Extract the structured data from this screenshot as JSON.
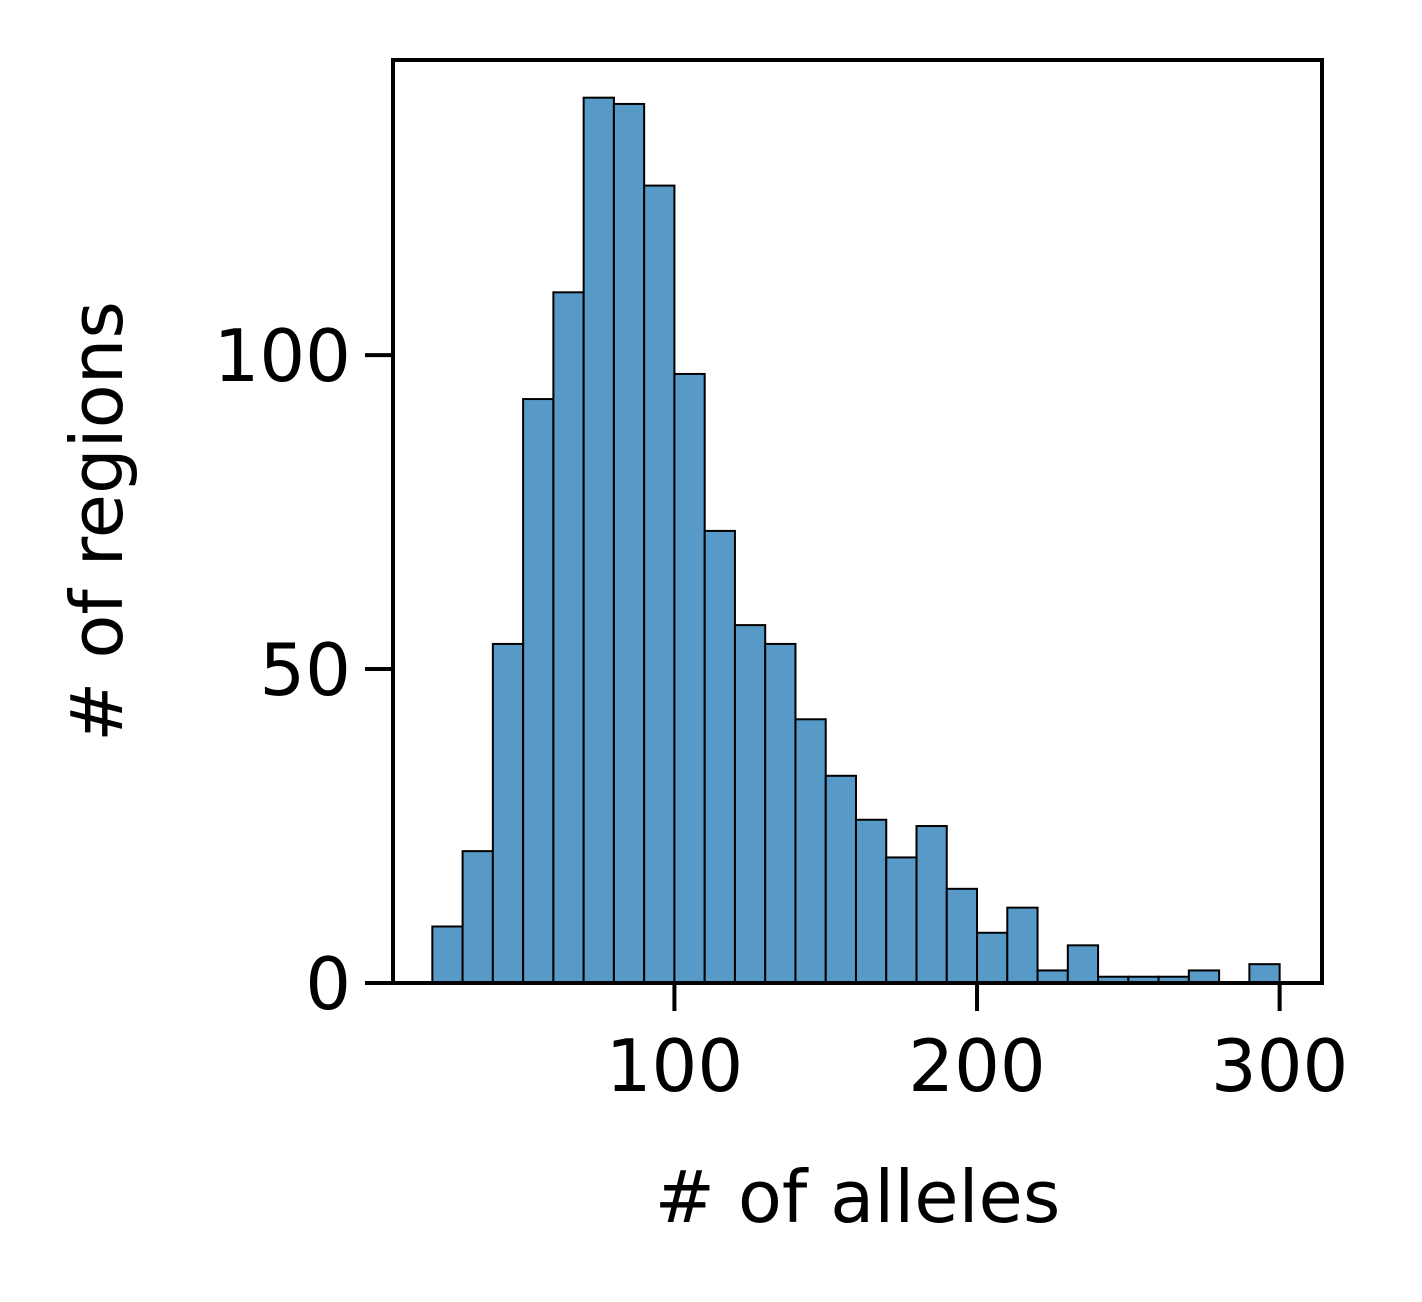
{
  "chart_data": {
    "type": "bar",
    "subtype": "histogram",
    "title": "",
    "xlabel": "# of alleles",
    "ylabel": "# of regions",
    "xlim": [
      7,
      314
    ],
    "ylim": [
      0,
      147
    ],
    "xticks": [
      100,
      200,
      300
    ],
    "yticks": [
      0,
      50,
      100
    ],
    "grid": false,
    "legend": "none",
    "bar_color": "#5799c7",
    "edge_color": "#000000",
    "bins": [
      {
        "x0": 20,
        "x1": 30,
        "count": 9
      },
      {
        "x0": 30,
        "x1": 40,
        "count": 21
      },
      {
        "x0": 40,
        "x1": 50,
        "count": 54
      },
      {
        "x0": 50,
        "x1": 60,
        "count": 93
      },
      {
        "x0": 60,
        "x1": 70,
        "count": 110
      },
      {
        "x0": 70,
        "x1": 80,
        "count": 141
      },
      {
        "x0": 80,
        "x1": 90,
        "count": 140
      },
      {
        "x0": 90,
        "x1": 100,
        "count": 127
      },
      {
        "x0": 100,
        "x1": 110,
        "count": 97
      },
      {
        "x0": 110,
        "x1": 120,
        "count": 72
      },
      {
        "x0": 120,
        "x1": 130,
        "count": 57
      },
      {
        "x0": 130,
        "x1": 140,
        "count": 54
      },
      {
        "x0": 140,
        "x1": 150,
        "count": 42
      },
      {
        "x0": 150,
        "x1": 160,
        "count": 33
      },
      {
        "x0": 160,
        "x1": 170,
        "count": 26
      },
      {
        "x0": 170,
        "x1": 180,
        "count": 20
      },
      {
        "x0": 180,
        "x1": 190,
        "count": 25
      },
      {
        "x0": 190,
        "x1": 200,
        "count": 15
      },
      {
        "x0": 200,
        "x1": 210,
        "count": 8
      },
      {
        "x0": 210,
        "x1": 220,
        "count": 12
      },
      {
        "x0": 220,
        "x1": 230,
        "count": 2
      },
      {
        "x0": 230,
        "x1": 240,
        "count": 6
      },
      {
        "x0": 240,
        "x1": 250,
        "count": 1
      },
      {
        "x0": 250,
        "x1": 260,
        "count": 1
      },
      {
        "x0": 260,
        "x1": 270,
        "count": 1
      },
      {
        "x0": 270,
        "x1": 280,
        "count": 2
      },
      {
        "x0": 280,
        "x1": 290,
        "count": 0
      },
      {
        "x0": 290,
        "x1": 300,
        "count": 3
      }
    ]
  }
}
